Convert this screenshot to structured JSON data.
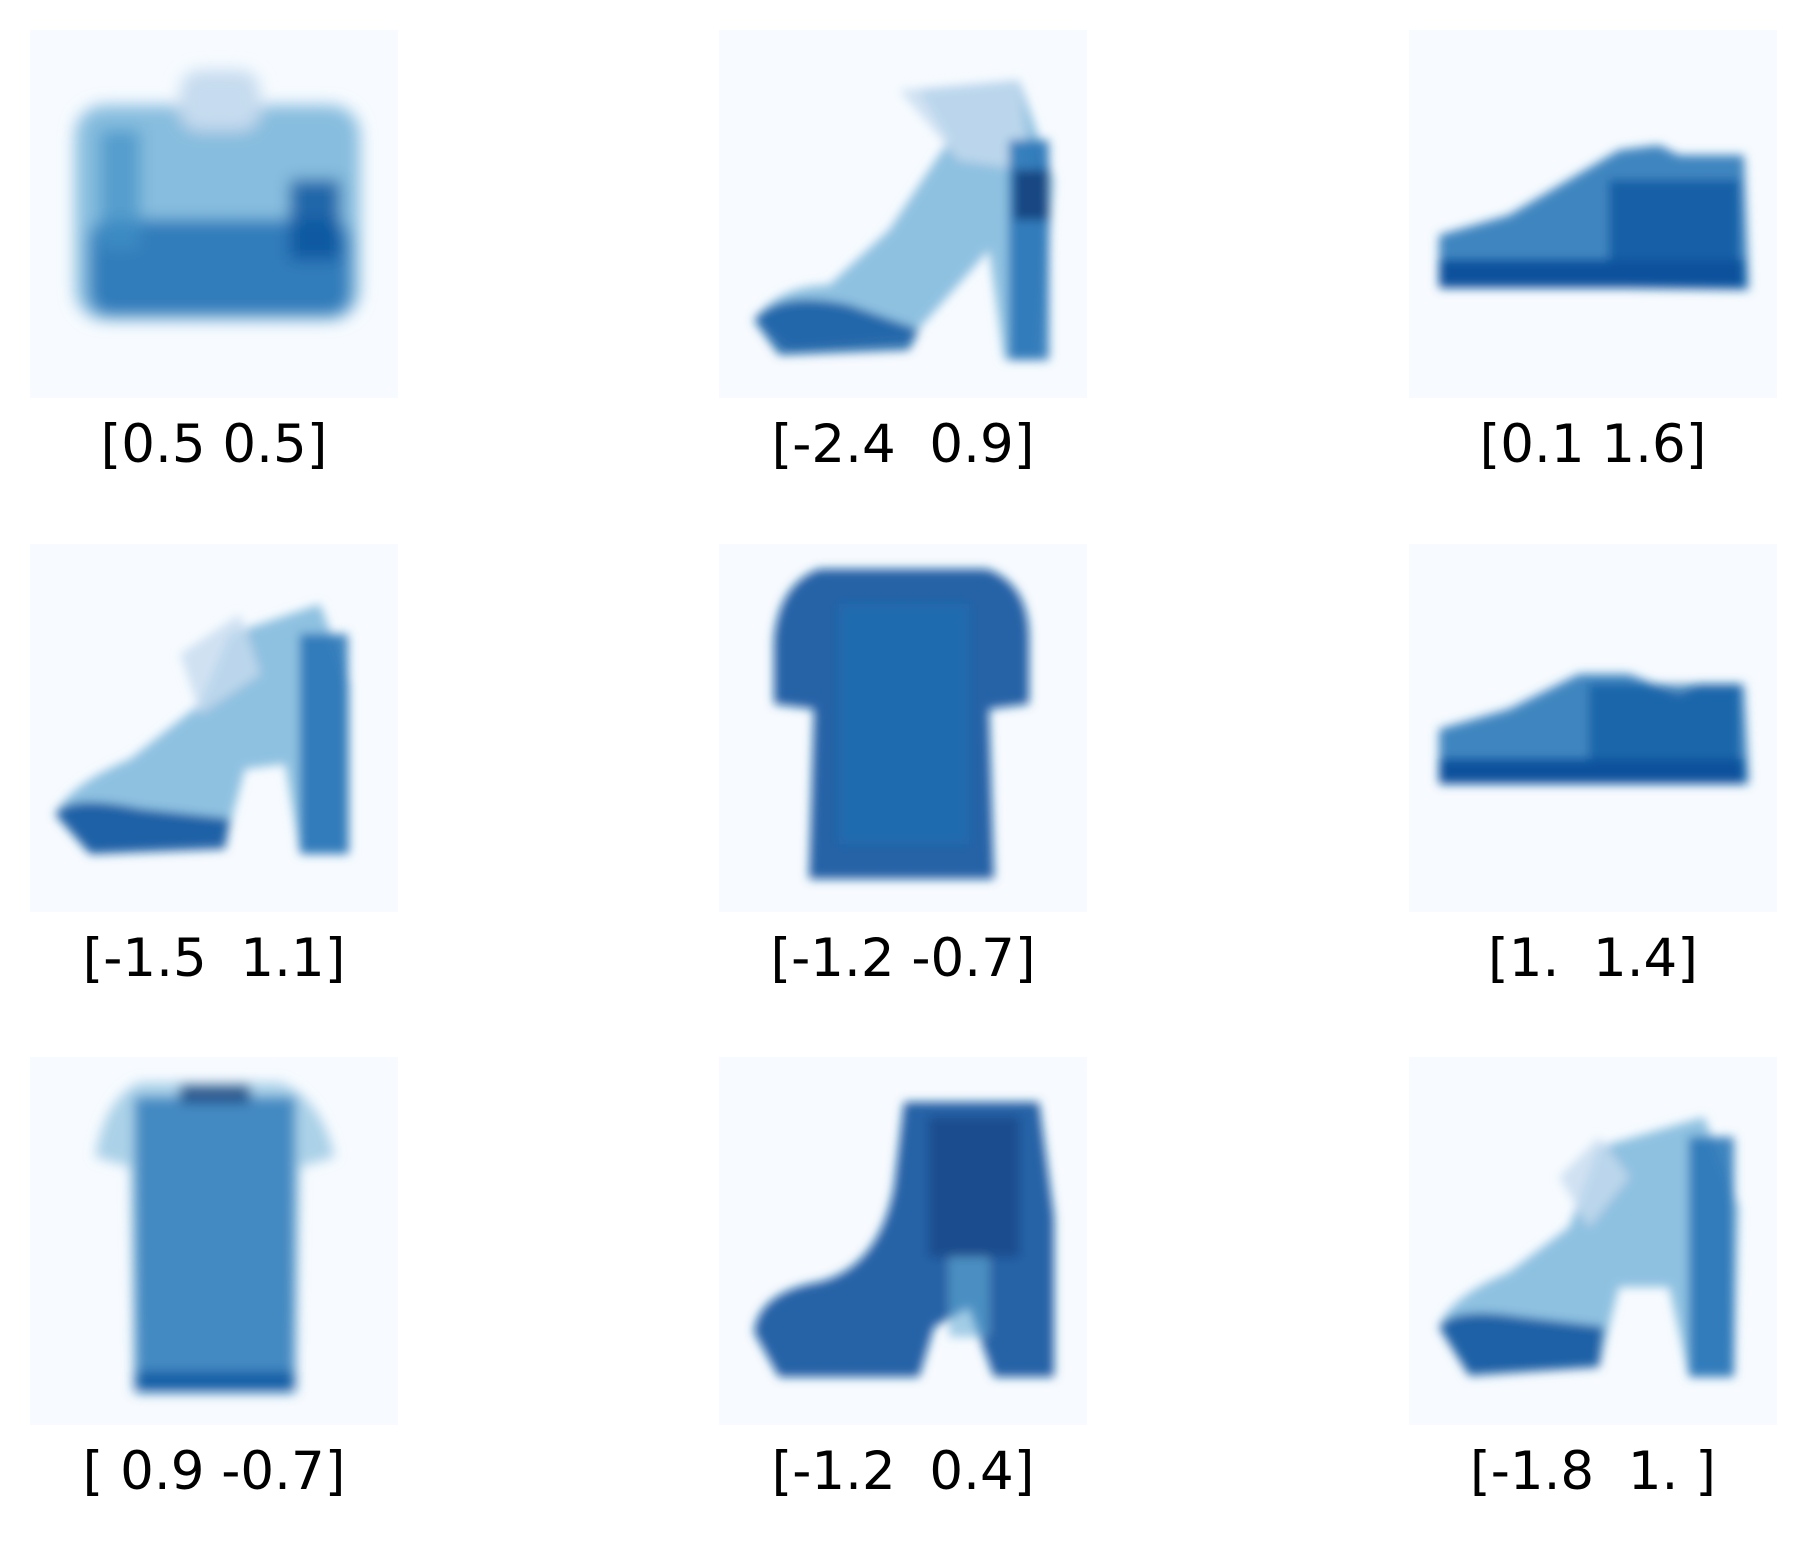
{
  "colors": {
    "background": "#ffffff",
    "panel_background": "#f7fbff",
    "ink_light": "#c6dbef",
    "ink_mid": "#4292c6",
    "ink_dark": "#08519c",
    "ink_darkest": "#08306b"
  },
  "panels": [
    {
      "caption": "[0.5 0.5]",
      "picture": "handbag"
    },
    {
      "caption": "[-2.4  0.9]",
      "picture": "sandal"
    },
    {
      "caption": "[0.1 1.6]",
      "picture": "sneaker"
    },
    {
      "caption": "[-1.5  1.1]",
      "picture": "sandal"
    },
    {
      "caption": "[-1.2 -0.7]",
      "picture": "tshirt"
    },
    {
      "caption": "[1.  1.4]",
      "picture": "sneaker"
    },
    {
      "caption": "[ 0.9 -0.7]",
      "picture": "tshirt"
    },
    {
      "caption": "[-1.2  0.4]",
      "picture": "ankle-boot"
    },
    {
      "caption": "[-1.8  1. ]",
      "picture": "sandal"
    }
  ]
}
